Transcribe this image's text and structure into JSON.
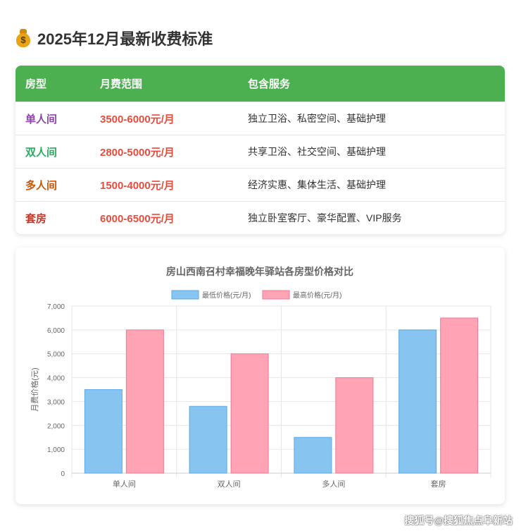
{
  "heading": {
    "icon": "money-bag-icon",
    "title": "2025年12月最新收费标准"
  },
  "table": {
    "header_color": "#4caf50",
    "headers": [
      "房型",
      "月费范围",
      "包含服务"
    ],
    "rows": [
      {
        "type": "单人间",
        "type_color": "#8e44ad",
        "price": "3500-6000元/月",
        "services": "独立卫浴、私密空间、基础护理"
      },
      {
        "type": "双人间",
        "type_color": "#27ae60",
        "price": "2800-5000元/月",
        "services": "共享卫浴、社交空间、基础护理"
      },
      {
        "type": "多人间",
        "type_color": "#d35400",
        "price": "1500-4000元/月",
        "services": "经济实惠、集体生活、基础护理"
      },
      {
        "type": "套房",
        "type_color": "#c0392b",
        "price": "6000-6500元/月",
        "services": "独立卧室客厅、豪华配置、VIP服务"
      }
    ]
  },
  "chart_data": {
    "type": "bar",
    "title": "房山西南召村幸福晚年驿站各房型价格对比",
    "ylabel": "月费价格(元)",
    "xlabel": "",
    "categories": [
      "单人间",
      "双人间",
      "多人间",
      "套房"
    ],
    "series": [
      {
        "name": "最低价格(元/月)",
        "values": [
          3500,
          2800,
          1500,
          6000
        ],
        "color": "#87c5f0",
        "border": "#5aa9e6"
      },
      {
        "name": "最高价格(元/月)",
        "values": [
          6000,
          5000,
          4000,
          6500
        ],
        "color": "#ffa3b5",
        "border": "#f07a94"
      }
    ],
    "ylim": [
      0,
      7000
    ],
    "yticks": [
      "0",
      "1,000",
      "2,000",
      "3,000",
      "4,000",
      "5,000",
      "6,000",
      "7,000"
    ],
    "grid": true,
    "legend": "top-center"
  },
  "watermark": "搜狐号@搜狐焦点阜新站"
}
